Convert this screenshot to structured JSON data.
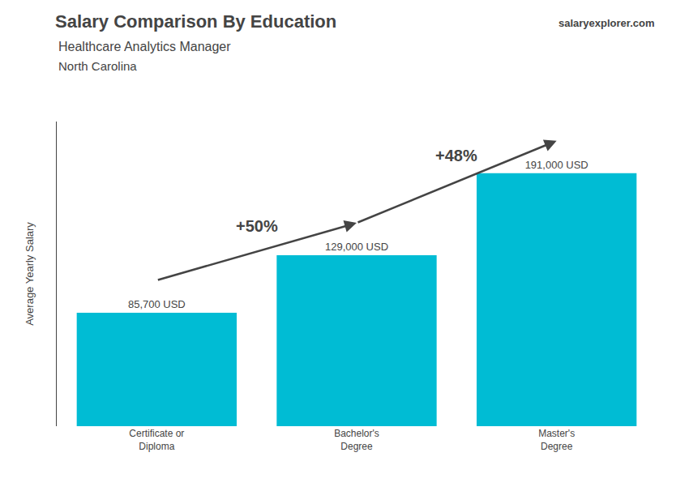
{
  "chart_data": {
    "type": "bar",
    "title": "Salary Comparison By Education",
    "subtitle": "Healthcare Analytics Manager",
    "ylabel": "Average Yearly Salary",
    "categories": [
      "Certificate or\nDiploma",
      "Bachelor's\nDegree",
      "Master's\nDegree"
    ],
    "values": [
      85700,
      129000,
      191000
    ],
    "value_labels": [
      "85,700 USD",
      "129,000 USD",
      "191,000 USD"
    ],
    "data_labels": true,
    "color": "#00bcd4",
    "ylim": [
      0,
      230000
    ],
    "tick_labels": "x",
    "grid": false,
    "annotations": [
      {
        "text": "North Carolina"
      },
      {
        "text": "salaryexplorer.com"
      },
      {
        "text": "+50%",
        "from": "Certificate or\nDiploma",
        "to": "Bachelor's\nDegree"
      },
      {
        "text": "+48%",
        "from": "Bachelor's\nDegree",
        "to": "Master's\nDegree"
      }
    ]
  }
}
